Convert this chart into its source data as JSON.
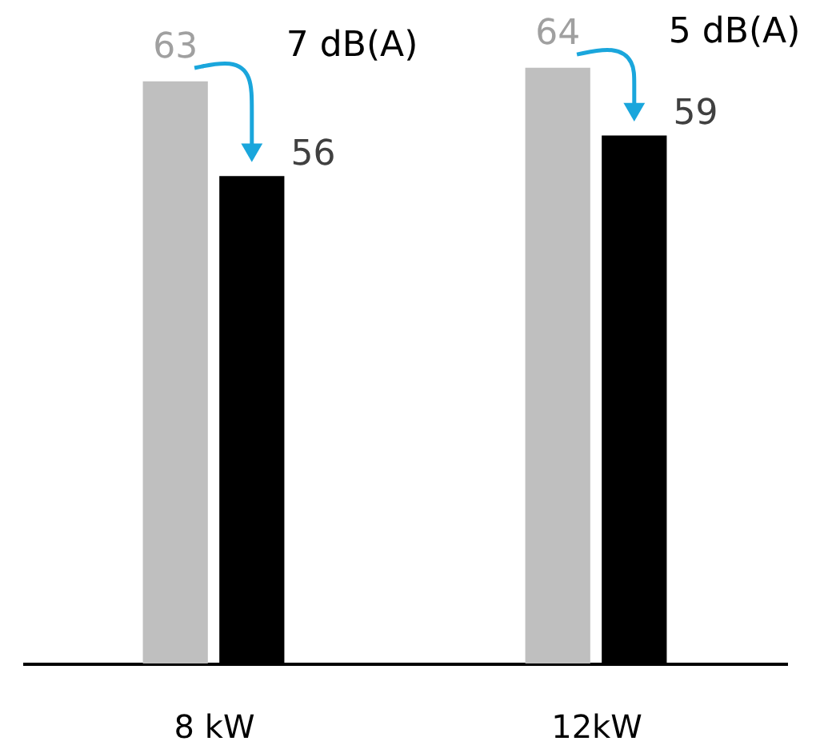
{
  "chart_data": {
    "type": "bar",
    "categories": [
      "8 kW",
      "12kW"
    ],
    "series": [
      {
        "color": "#bfbfbf",
        "values": [
          63,
          64
        ]
      },
      {
        "color": "#000000",
        "values": [
          56,
          59
        ]
      }
    ],
    "ylim": [
      20,
      69
    ],
    "data_labels": true,
    "grid": false,
    "annotations": [
      "7 dB(A)",
      "5 dB(A)"
    ]
  }
}
